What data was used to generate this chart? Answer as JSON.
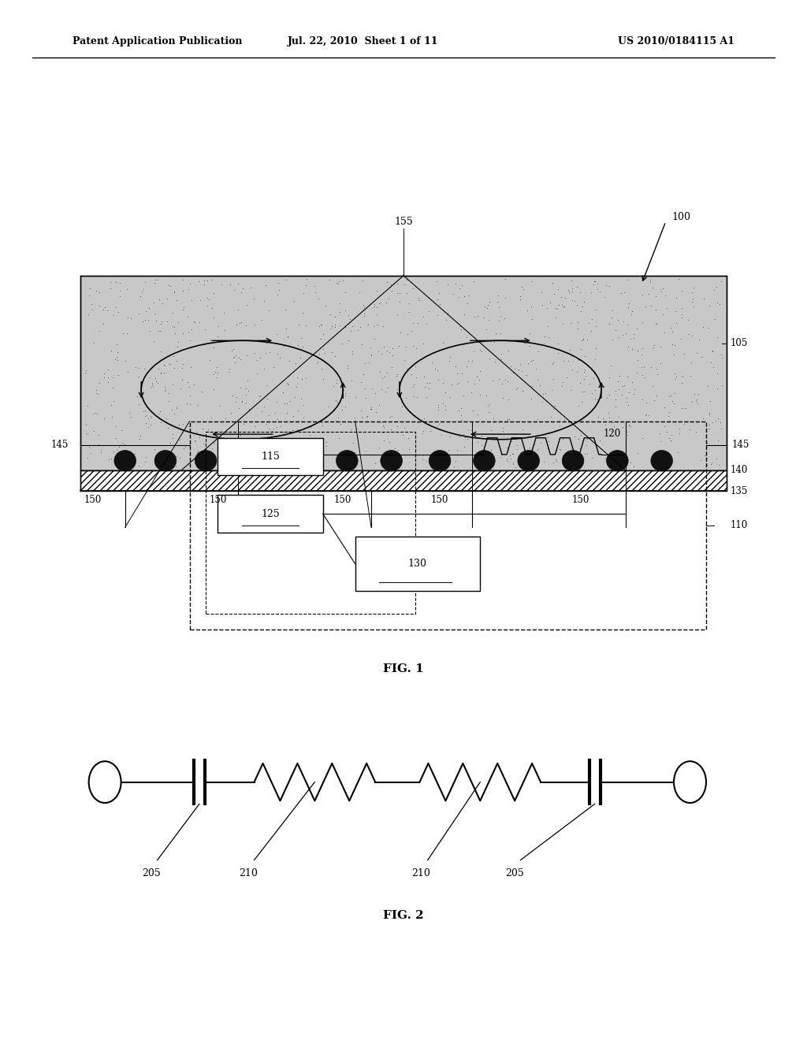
{
  "bg_color": "#ffffff",
  "header_left": "Patent Application Publication",
  "header_mid": "Jul. 22, 2010  Sheet 1 of 11",
  "header_right": "US 2010/0184115 A1",
  "fig1_label": "FIG. 1",
  "fig2_label": "FIG. 2",
  "zigzag_amp": 0.018,
  "hatch_color": "#888888",
  "stipple_color": "#aaaaaa",
  "line_color": "#000000",
  "text_color": "#000000"
}
